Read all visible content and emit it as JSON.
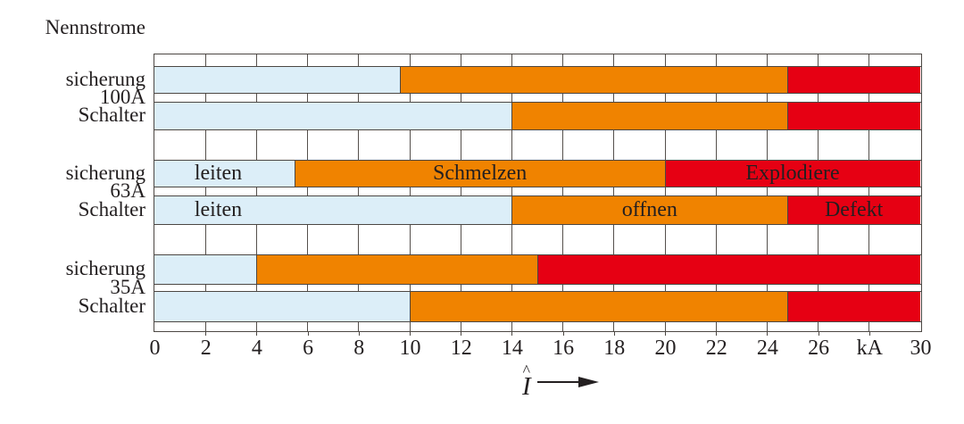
{
  "chart_data": {
    "type": "bar",
    "orientation": "horizontal-stacked",
    "title": "Nennstrome",
    "unit": "kA",
    "xlim": [
      0,
      30
    ],
    "grid": "vertical gridlines every 2 kA, drawn in white gap strips",
    "xlabel_hat": "^",
    "xlabel_letter": "I",
    "x_ticks": [
      {
        "value": 0,
        "label": "0"
      },
      {
        "value": 2,
        "label": "2"
      },
      {
        "value": 4,
        "label": "4"
      },
      {
        "value": 6,
        "label": "6"
      },
      {
        "value": 8,
        "label": "8"
      },
      {
        "value": 10,
        "label": "10"
      },
      {
        "value": 12,
        "label": "12"
      },
      {
        "value": 14,
        "label": "14"
      },
      {
        "value": 16,
        "label": "16"
      },
      {
        "value": 18,
        "label": "18"
      },
      {
        "value": 20,
        "label": "20"
      },
      {
        "value": 22,
        "label": "22"
      },
      {
        "value": 24,
        "label": "24"
      },
      {
        "value": 26,
        "label": "26"
      },
      {
        "value": 28,
        "label": "kA"
      },
      {
        "value": 30,
        "label": "30"
      }
    ],
    "colors": {
      "lightblue": "#dceef8",
      "orange": "#f08300",
      "red": "#e60013",
      "line": "#4c4743",
      "text": "#231f20"
    },
    "rows": [
      {
        "group": "100A",
        "device": "sicherung",
        "segments": [
          {
            "color": "lightblue",
            "from": 0,
            "to": 9.6,
            "label": ""
          },
          {
            "color": "orange",
            "from": 9.6,
            "to": 24.8,
            "label": ""
          },
          {
            "color": "red",
            "from": 24.8,
            "to": 30,
            "label": ""
          }
        ]
      },
      {
        "group": "100A",
        "device": "Schalter",
        "segments": [
          {
            "color": "lightblue",
            "from": 0,
            "to": 14,
            "label": ""
          },
          {
            "color": "orange",
            "from": 14,
            "to": 24.8,
            "label": ""
          },
          {
            "color": "red",
            "from": 24.8,
            "to": 30,
            "label": ""
          }
        ]
      },
      {
        "group": "63A",
        "device": "sicherung",
        "segments": [
          {
            "color": "lightblue",
            "from": 0,
            "to": 5.5,
            "label": "leiten",
            "label_x": 2.5
          },
          {
            "color": "orange",
            "from": 5.5,
            "to": 20,
            "label": "Schmelzen"
          },
          {
            "color": "red",
            "from": 20,
            "to": 30,
            "label": "Explodiere"
          }
        ]
      },
      {
        "group": "63A",
        "device": "Schalter",
        "segments": [
          {
            "color": "lightblue",
            "from": 0,
            "to": 14,
            "label": "leiten",
            "label_x": 2.5
          },
          {
            "color": "orange",
            "from": 14,
            "to": 24.8,
            "label": "offnen"
          },
          {
            "color": "red",
            "from": 24.8,
            "to": 30,
            "label": "Defekt"
          }
        ]
      },
      {
        "group": "35A",
        "device": "sicherung",
        "segments": [
          {
            "color": "lightblue",
            "from": 0,
            "to": 4,
            "label": ""
          },
          {
            "color": "orange",
            "from": 4,
            "to": 15,
            "label": ""
          },
          {
            "color": "red",
            "from": 15,
            "to": 30,
            "label": ""
          }
        ]
      },
      {
        "group": "35A",
        "device": "Schalter",
        "segments": [
          {
            "color": "lightblue",
            "from": 0,
            "to": 10,
            "label": ""
          },
          {
            "color": "orange",
            "from": 10,
            "to": 24.8,
            "label": ""
          },
          {
            "color": "red",
            "from": 24.8,
            "to": 30,
            "label": ""
          }
        ]
      }
    ]
  }
}
